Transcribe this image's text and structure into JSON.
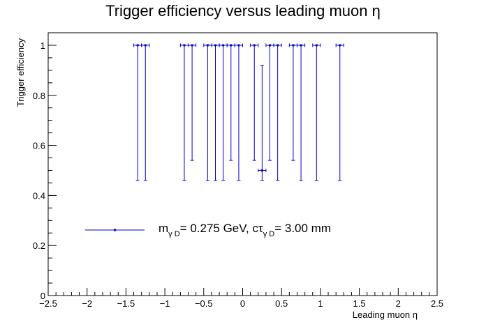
{
  "chart_data": {
    "type": "scatter",
    "title": "Trigger efficiency versus leading muon η",
    "xlabel": "Leading muon η",
    "ylabel": "Trigger efficiency",
    "xlim": [
      -2.5,
      2.5
    ],
    "ylim": [
      0,
      1.05
    ],
    "x_ticks": [
      -2.5,
      -2,
      -1.5,
      -1,
      -0.5,
      0,
      0.5,
      1,
      1.5,
      2,
      2.5
    ],
    "x_tick_labels": [
      "−2.5",
      "−2",
      "−1.5",
      "−1",
      "−0.5",
      "0",
      "0.5",
      "1",
      "1.5",
      "2",
      "2.5"
    ],
    "y_ticks": [
      0,
      0.2,
      0.4,
      0.6,
      0.8,
      1
    ],
    "y_tick_labels": [
      "0",
      "0.2",
      "0.4",
      "0.6",
      "0.8",
      "1"
    ],
    "grid": false,
    "series_color": "#0000cc",
    "series": [
      {
        "name": "",
        "points": [
          {
            "x": -1.35,
            "y": 1.0,
            "xerr": 0.05,
            "ylow": 0.46
          },
          {
            "x": -1.25,
            "y": 1.0,
            "xerr": 0.05,
            "ylow": 0.46
          },
          {
            "x": -0.75,
            "y": 1.0,
            "xerr": 0.05,
            "ylow": 0.46
          },
          {
            "x": -0.65,
            "y": 1.0,
            "xerr": 0.05,
            "ylow": 0.54
          },
          {
            "x": -0.45,
            "y": 1.0,
            "xerr": 0.05,
            "ylow": 0.46
          },
          {
            "x": -0.35,
            "y": 1.0,
            "xerr": 0.05,
            "ylow": 0.46
          },
          {
            "x": -0.25,
            "y": 1.0,
            "xerr": 0.05,
            "ylow": 0.46
          },
          {
            "x": -0.15,
            "y": 1.0,
            "xerr": 0.05,
            "ylow": 0.54
          },
          {
            "x": -0.05,
            "y": 1.0,
            "xerr": 0.05,
            "ylow": 0.46
          },
          {
            "x": 0.15,
            "y": 1.0,
            "xerr": 0.05,
            "ylow": 0.54
          },
          {
            "x": 0.25,
            "y": 0.5,
            "xerr": 0.05,
            "ylow": 0.46,
            "yhigh": 0.92
          },
          {
            "x": 0.35,
            "y": 1.0,
            "xerr": 0.05,
            "ylow": 0.54
          },
          {
            "x": 0.45,
            "y": 1.0,
            "xerr": 0.05,
            "ylow": 0.46
          },
          {
            "x": 0.65,
            "y": 1.0,
            "xerr": 0.05,
            "ylow": 0.54
          },
          {
            "x": 0.75,
            "y": 1.0,
            "xerr": 0.05,
            "ylow": 0.46
          },
          {
            "x": 0.95,
            "y": 1.0,
            "xerr": 0.05,
            "ylow": 0.46
          },
          {
            "x": 1.25,
            "y": 1.0,
            "xerr": 0.05,
            "ylow": 0.46
          }
        ]
      }
    ],
    "legend": {
      "m_main": "m",
      "m_sub": "γ D",
      "m_rest": "= 0.275 GeV, cτ",
      "c_sub": "γ D",
      "c_rest": "= 3.00 mm"
    }
  }
}
